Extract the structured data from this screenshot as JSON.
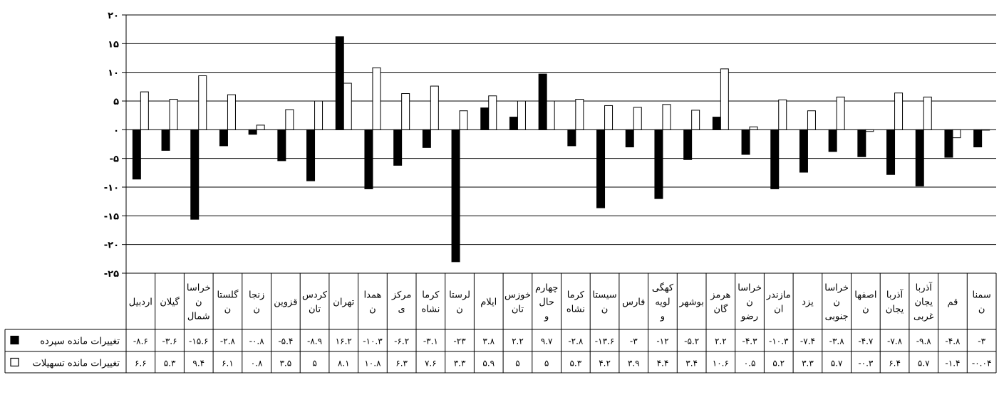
{
  "chart_data": {
    "type": "bar",
    "ylim": [
      -25,
      20
    ],
    "y_ticks": [
      20,
      15,
      10,
      5,
      0,
      -5,
      -10,
      -15,
      -20,
      -25
    ],
    "y_tick_labels": [
      "۲۰",
      "۱۵",
      "۱۰",
      "۵",
      "۰",
      "-۵",
      "-۱۰",
      "-۱۵",
      "-۲۰",
      "-۲۵"
    ],
    "grid": true,
    "categories": [
      [
        "اردبیل"
      ],
      [
        "گیلان"
      ],
      [
        "خراسا",
        "ن",
        "شمال"
      ],
      [
        "گلستا",
        "ن"
      ],
      [
        "زنجا",
        "ن"
      ],
      [
        "قزوین"
      ],
      [
        "کردس",
        "تان"
      ],
      [
        "تهران"
      ],
      [
        "همدا",
        "ن"
      ],
      [
        "مرکز",
        "ی"
      ],
      [
        "کرما",
        "نشاه"
      ],
      [
        "لرستا",
        "ن"
      ],
      [
        "ایلام"
      ],
      [
        "خوزس",
        "تان"
      ],
      [
        "چهارم",
        "حال",
        "و"
      ],
      [
        "کرما",
        "نشاه"
      ],
      [
        "سیستا",
        "ن"
      ],
      [
        "فارس"
      ],
      [
        "کهگی",
        "لویه",
        "و"
      ],
      [
        "بوشهر"
      ],
      [
        "هرمز",
        "گان"
      ],
      [
        "خراسا",
        "ن",
        "رضو"
      ],
      [
        "مازندر",
        "ان"
      ],
      [
        "یزد"
      ],
      [
        "خراسا",
        "ن",
        "جنوبی"
      ],
      [
        "اصفها",
        "ن"
      ],
      [
        "آذربا",
        "یجان"
      ],
      [
        "آذربا",
        "یجان",
        "غربی"
      ],
      [
        "قم"
      ],
      [
        "سمنا",
        "ن"
      ]
    ],
    "series": [
      {
        "name": "تغییرات مانده سپرده",
        "marker": "■",
        "color": "#000000",
        "values": [
          -8.6,
          -3.6,
          -15.6,
          -2.8,
          -0.8,
          -5.4,
          -8.9,
          16.2,
          -10.3,
          -6.2,
          -3.1,
          -23,
          3.8,
          2.2,
          9.7,
          -2.8,
          -13.6,
          -3,
          -12,
          -5.2,
          2.2,
          -4.3,
          -10.3,
          -7.4,
          -3.8,
          -4.7,
          -7.8,
          -9.8,
          -4.8,
          -3
        ],
        "labels": [
          "-۸.۶",
          "-۳.۶",
          "-۱۵.۶",
          "-۲.۸",
          "-۰.۸",
          "-۵.۴",
          "-۸.۹",
          "۱۶.۲",
          "-۱۰.۳",
          "-۶.۲",
          "-۳.۱",
          "-۲۳",
          "۳.۸",
          "۲.۲",
          "۹.۷",
          "-۲.۸",
          "-۱۳.۶",
          "-۳",
          "-۱۲",
          "-۵.۲",
          "۲.۲",
          "-۴.۳",
          "-۱۰.۳",
          "-۷.۴",
          "-۳.۸",
          "-۴.۷",
          "-۷.۸",
          "-۹.۸",
          "-۴.۸",
          "-۳"
        ]
      },
      {
        "name": "تغییرات مانده تسهیلات",
        "marker": "□",
        "color": "#ffffff",
        "values": [
          6.6,
          5.3,
          9.4,
          6.1,
          0.8,
          3.5,
          5,
          8.1,
          10.8,
          6.3,
          7.6,
          3.3,
          5.9,
          5,
          5,
          5.3,
          4.2,
          3.9,
          4.4,
          3.4,
          10.6,
          0.5,
          5.2,
          3.3,
          5.7,
          -0.3,
          6.4,
          5.7,
          -1.4,
          -0.04
        ],
        "labels": [
          "۶.۶",
          "۵.۳",
          "۹.۴",
          "۶.۱",
          "۰.۸",
          "۳.۵",
          "۵",
          "۸.۱",
          "۱۰.۸",
          "۶.۳",
          "۷.۶",
          "۳.۳",
          "۵.۹",
          "۵",
          "۵",
          "۵.۳",
          "۴.۲",
          "۳.۹",
          "۴.۴",
          "۳.۴",
          "۱۰.۶",
          "۰.۵",
          "۵.۲",
          "۳.۳",
          "۵.۷",
          "-۰.۳",
          "۶.۴",
          "۵.۷",
          "-۱.۴",
          "-۰.۰۴"
        ]
      }
    ]
  }
}
